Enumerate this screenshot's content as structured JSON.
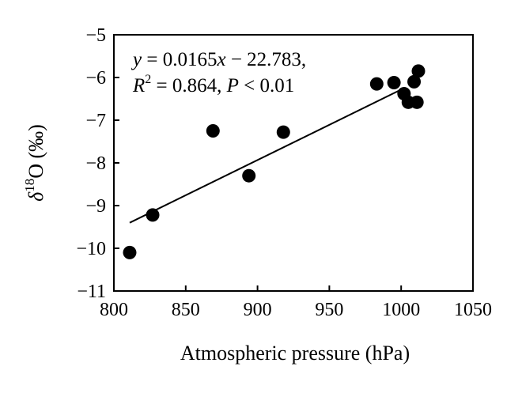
{
  "chart_data": {
    "type": "scatter",
    "xlabel": "Atmospheric pressure (hPa)",
    "ylabel": {
      "delta": "δ",
      "sup": "18",
      "rest": "O (‰)"
    },
    "xlim": [
      800,
      1050
    ],
    "ylim": [
      -11,
      -5
    ],
    "xticks": [
      "800",
      "850",
      "900",
      "950",
      "1000",
      "1050"
    ],
    "yticks": [
      "−5",
      "−6",
      "−7",
      "−8",
      "−9",
      "−10",
      "−11"
    ],
    "xtick_values": [
      800,
      850,
      900,
      950,
      1000,
      1050
    ],
    "ytick_values": [
      -5,
      -6,
      -7,
      -8,
      -9,
      -10,
      -11
    ],
    "grid": false,
    "points": [
      {
        "x": 811,
        "y": -10.1
      },
      {
        "x": 827,
        "y": -9.22
      },
      {
        "x": 869,
        "y": -7.25
      },
      {
        "x": 894,
        "y": -8.3
      },
      {
        "x": 918,
        "y": -7.28
      },
      {
        "x": 983,
        "y": -6.15
      },
      {
        "x": 995,
        "y": -6.12
      },
      {
        "x": 1002,
        "y": -6.38
      },
      {
        "x": 1005,
        "y": -6.58
      },
      {
        "x": 1009,
        "y": -6.1
      },
      {
        "x": 1011,
        "y": -6.58
      },
      {
        "x": 1012,
        "y": -5.85
      }
    ],
    "fit_line": {
      "slope": 0.0165,
      "intercept": -22.783,
      "x_range": [
        811,
        1001
      ]
    },
    "annotation": {
      "line1": {
        "y": "y",
        "eq": " = 0.0165",
        "x": "x",
        "rest": " − 22.783,"
      },
      "line2": {
        "R": "R",
        "sup": "2",
        "eq": " = 0.864, ",
        "P": "P",
        "rest": " < 0.01"
      }
    }
  }
}
